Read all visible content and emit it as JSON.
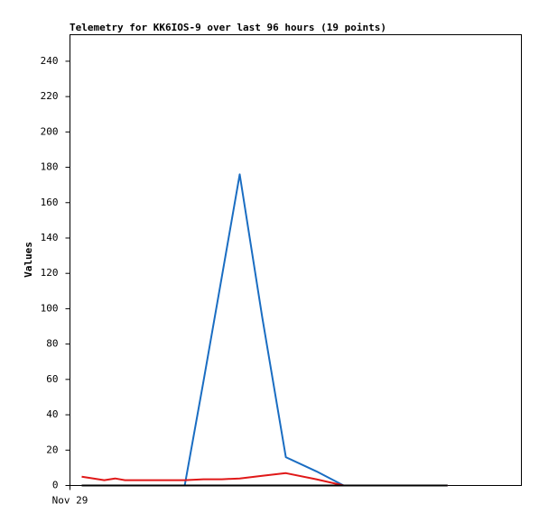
{
  "chart_data": {
    "type": "line",
    "title": "Telemetry for KK6IOS-9 over last 96 hours (19 points)",
    "y_label": "Values",
    "x": [
      2.5,
      5,
      7.3,
      9.6,
      11.7,
      14,
      16.5,
      19,
      21.7,
      24.4,
      28.4,
      32.3,
      36.1,
      40.9,
      45.9,
      52.4,
      58.2,
      69.7,
      80.3
    ],
    "xlim": [
      0,
      96
    ],
    "xticks": [
      {
        "value": 0,
        "label": "Nov 29"
      }
    ],
    "ylim": [
      0,
      255
    ],
    "yticks": [
      0,
      20,
      40,
      60,
      80,
      100,
      120,
      140,
      160,
      180,
      200,
      220,
      240
    ],
    "grid": false,
    "series": [
      {
        "color": "#1a6dc2",
        "values": [
          0,
          0,
          0,
          0,
          0,
          0,
          0,
          0,
          0,
          0,
          59,
          118,
          176,
          95,
          16,
          8,
          0,
          0,
          0
        ]
      },
      {
        "color": "#e01818",
        "values": [
          5,
          4,
          3,
          4,
          3,
          3,
          3,
          3,
          3,
          3,
          3.5,
          3.5,
          4,
          5.5,
          7,
          3.5,
          0,
          0,
          0
        ]
      },
      {
        "color": "#000000",
        "values": [
          0,
          0,
          0,
          0,
          0,
          0,
          0,
          0,
          0,
          0,
          0,
          0,
          0,
          0,
          0,
          0,
          0,
          0,
          0
        ]
      }
    ]
  }
}
